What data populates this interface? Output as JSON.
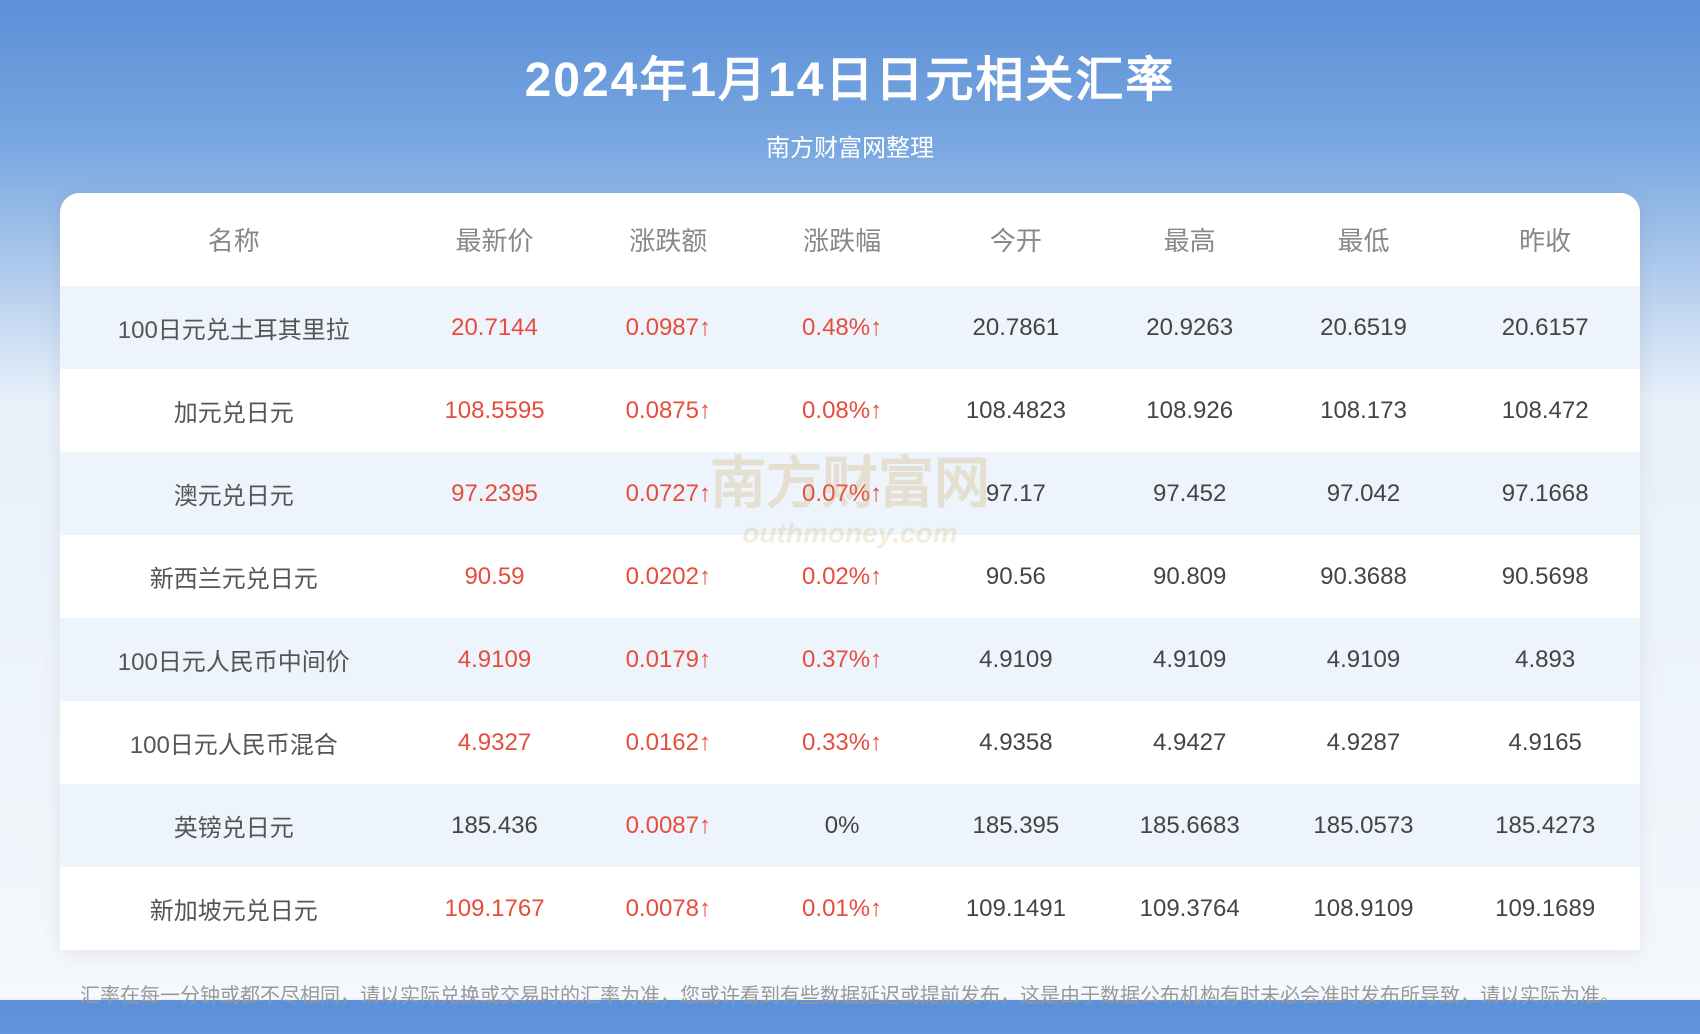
{
  "title": "2024年1月14日日元相关汇率",
  "subtitle": "南方财富网整理",
  "watermark_main": "南方财富网",
  "watermark_sub": "outhmoney.com",
  "columns": [
    "名称",
    "最新价",
    "涨跌额",
    "涨跌幅",
    "今开",
    "最高",
    "最低",
    "昨收"
  ],
  "rows": [
    {
      "name": "100日元兑土耳其里拉",
      "latest": "20.7144",
      "latest_color": "red",
      "change": "0.0987↑",
      "change_color": "red",
      "pct": "0.48%↑",
      "pct_color": "red",
      "open": "20.7861",
      "high": "20.9263",
      "low": "20.6519",
      "prev": "20.6157"
    },
    {
      "name": "加元兑日元",
      "latest": "108.5595",
      "latest_color": "red",
      "change": "0.0875↑",
      "change_color": "red",
      "pct": "0.08%↑",
      "pct_color": "red",
      "open": "108.4823",
      "high": "108.926",
      "low": "108.173",
      "prev": "108.472"
    },
    {
      "name": "澳元兑日元",
      "latest": "97.2395",
      "latest_color": "red",
      "change": "0.0727↑",
      "change_color": "red",
      "pct": "0.07%↑",
      "pct_color": "red",
      "open": "97.17",
      "high": "97.452",
      "low": "97.042",
      "prev": "97.1668"
    },
    {
      "name": "新西兰元兑日元",
      "latest": "90.59",
      "latest_color": "red",
      "change": "0.0202↑",
      "change_color": "red",
      "pct": "0.02%↑",
      "pct_color": "red",
      "open": "90.56",
      "high": "90.809",
      "low": "90.3688",
      "prev": "90.5698"
    },
    {
      "name": "100日元人民币中间价",
      "latest": "4.9109",
      "latest_color": "red",
      "change": "0.0179↑",
      "change_color": "red",
      "pct": "0.37%↑",
      "pct_color": "red",
      "open": "4.9109",
      "high": "4.9109",
      "low": "4.9109",
      "prev": "4.893"
    },
    {
      "name": "100日元人民币混合",
      "latest": "4.9327",
      "latest_color": "red",
      "change": "0.0162↑",
      "change_color": "red",
      "pct": "0.33%↑",
      "pct_color": "red",
      "open": "4.9358",
      "high": "4.9427",
      "low": "4.9287",
      "prev": "4.9165"
    },
    {
      "name": "英镑兑日元",
      "latest": "185.436",
      "latest_color": "black",
      "change": "0.0087↑",
      "change_color": "red",
      "pct": "0%",
      "pct_color": "black",
      "open": "185.395",
      "high": "185.6683",
      "low": "185.0573",
      "prev": "185.4273"
    },
    {
      "name": "新加坡元兑日元",
      "latest": "109.1767",
      "latest_color": "red",
      "change": "0.0078↑",
      "change_color": "red",
      "pct": "0.01%↑",
      "pct_color": "red",
      "open": "109.1491",
      "high": "109.3764",
      "low": "108.9109",
      "prev": "109.1689"
    }
  ],
  "footer": "汇率在每一分钟或都不尽相同，请以实际兑换或交易时的汇率为准，您或许看到有些数据延迟或提前发布，这是由于数据公布机构有时未必会准时发布所导致，请以实际为准。",
  "styling": {
    "header_bg_gradient": [
      "#5b8fd8",
      "#7aa8e0",
      "#e8f0fa",
      "#f5f8fc"
    ],
    "title_color": "#ffffff",
    "title_fontsize": 48,
    "subtitle_fontsize": 24,
    "header_text_color": "#888888",
    "header_fontsize": 26,
    "cell_fontsize": 24,
    "row_odd_bg": "#eef4fb",
    "row_even_bg": "#ffffff",
    "red_color": "#e74c3c",
    "black_color": "#444444",
    "footer_color": "#999999",
    "footer_fontsize": 20,
    "table_border_radius": 20,
    "col_widths_pct": [
      22,
      11,
      11,
      11,
      11,
      11,
      11,
      12
    ]
  }
}
